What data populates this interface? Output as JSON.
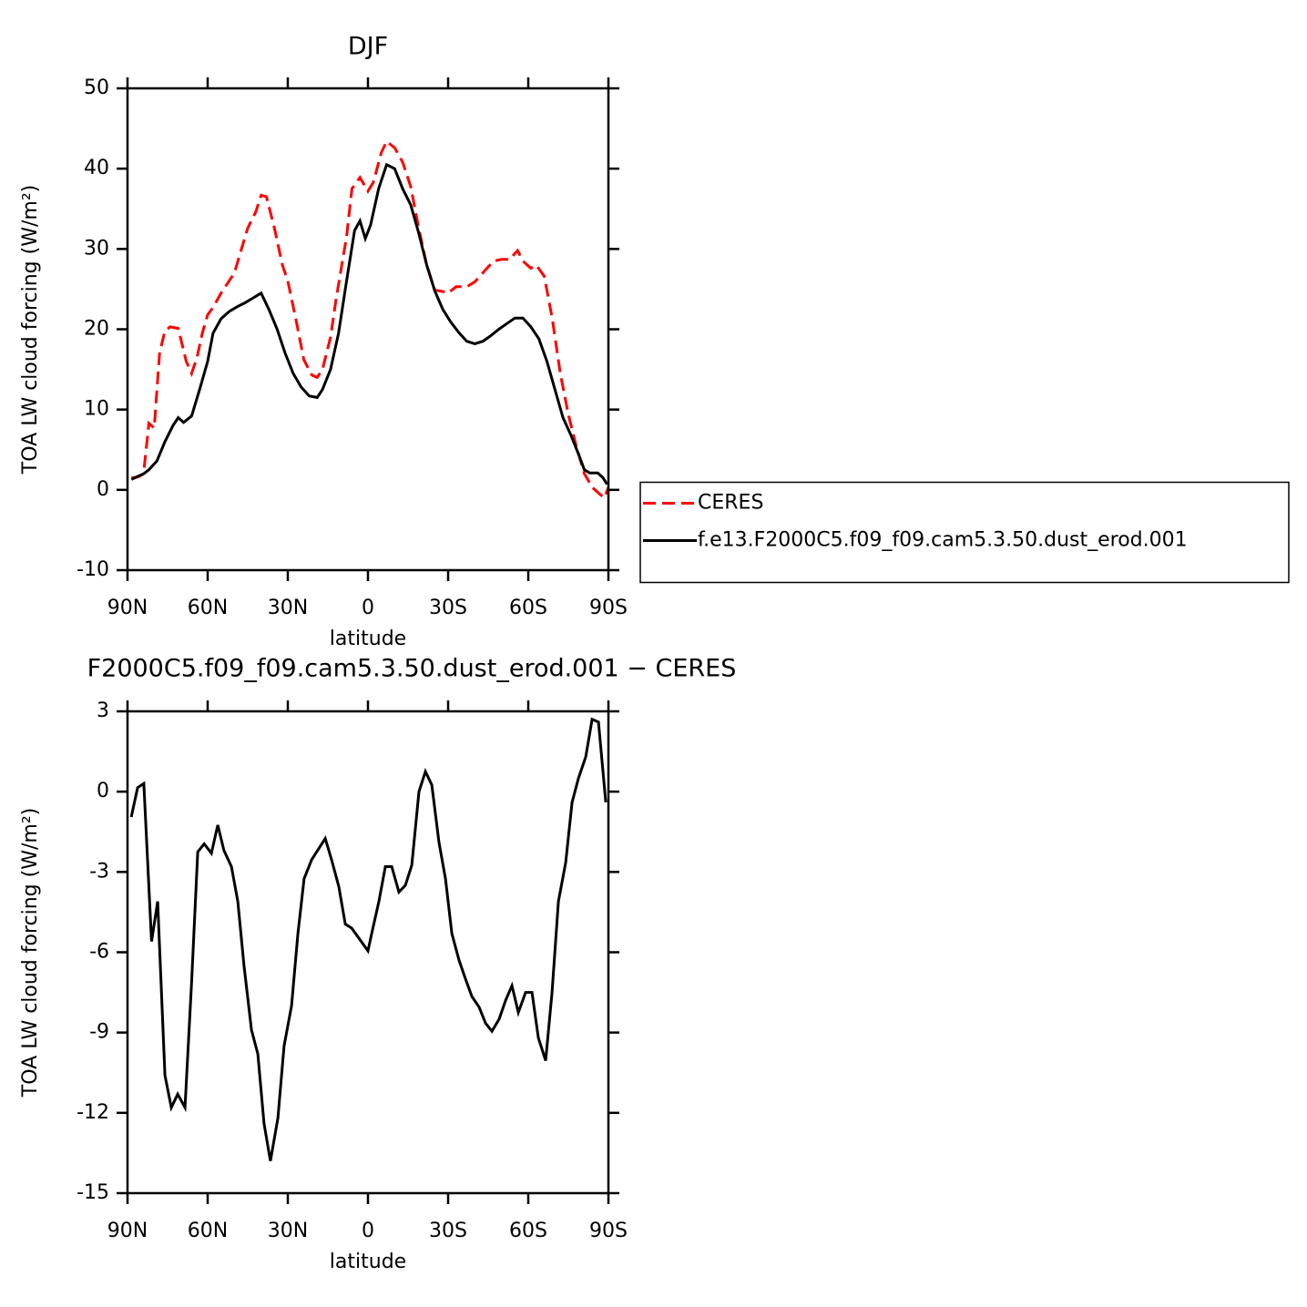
{
  "chart_data": [
    {
      "type": "line",
      "title": "DJF",
      "xlabel": "latitude",
      "ylabel": "TOA LW cloud forcing (W/m²)",
      "xlim": [
        90,
        -90
      ],
      "xticks": [
        {
          "value": 90,
          "label": "90N"
        },
        {
          "value": 60,
          "label": "60N"
        },
        {
          "value": 30,
          "label": "30N"
        },
        0,
        {
          "value": -30,
          "label": "30S"
        },
        {
          "value": -60,
          "label": "60S"
        },
        {
          "value": -90,
          "label": "90S"
        }
      ],
      "ylim": [
        -10,
        50
      ],
      "yticks": [
        -10,
        0,
        10,
        20,
        30,
        40,
        50
      ],
      "legend": "right",
      "series": [
        {
          "name": "CERES",
          "color": "#ff0000",
          "line_style": "dashed",
          "x": [
            88.5,
            86,
            84,
            82,
            80,
            78,
            76,
            74,
            71,
            68,
            66,
            64,
            62,
            60,
            58,
            55,
            52,
            50,
            45,
            42,
            40,
            38,
            35,
            32,
            30,
            27,
            24,
            21,
            19,
            17,
            14,
            12,
            8,
            6,
            3,
            0,
            -2,
            -5,
            -7,
            -10,
            -13,
            -16,
            -19,
            -22,
            -25,
            -28,
            -30,
            -33,
            -37,
            -40,
            -44,
            -47,
            -50,
            -53,
            -56,
            -58,
            -61,
            -63,
            -66,
            -69,
            -72,
            -75,
            -78,
            -81,
            -84,
            -87,
            -88.5,
            -90
          ],
          "values": [
            1.5,
            1.6,
            2,
            8.3,
            7.7,
            17,
            19.8,
            20.3,
            20.1,
            16,
            14.5,
            16.5,
            19.5,
            21.8,
            22.7,
            24.5,
            26,
            27,
            32.6,
            34.6,
            36.7,
            36.5,
            32.6,
            28,
            26,
            21.3,
            16.2,
            14.3,
            14,
            15,
            19,
            23.6,
            31.5,
            37.5,
            38.9,
            37.2,
            38.3,
            42,
            43.4,
            42.6,
            40.8,
            37.8,
            32.6,
            28,
            24.9,
            24.7,
            24.5,
            25.3,
            25.3,
            25.9,
            27.4,
            28.5,
            28.7,
            28.7,
            29.8,
            28.5,
            27.6,
            28,
            26.6,
            21.3,
            14.5,
            9.4,
            5.4,
            2,
            0.3,
            -0.6,
            -1,
            0.3
          ]
        },
        {
          "name": "f.e13.F2000C5.f09_f09.cam5.3.50.dust_erod.001",
          "color": "#000000",
          "line_style": "solid",
          "x": [
            88.5,
            86,
            84,
            82,
            79,
            76,
            73,
            71,
            69,
            66,
            63,
            60,
            58,
            55,
            52,
            49,
            46,
            43,
            40,
            37,
            34,
            31,
            28,
            25,
            22,
            19,
            17,
            14,
            11,
            8,
            5,
            3,
            1,
            -1,
            -4,
            -7,
            -10,
            -13,
            -16,
            -19,
            -22,
            -25,
            -28,
            -31,
            -34,
            -37,
            -40,
            -43,
            -46,
            -49,
            -52,
            -55,
            -58,
            -61,
            -64,
            -67,
            -70,
            -73,
            -76,
            -79,
            -81,
            -83,
            -86,
            -88,
            -89.5
          ],
          "values": [
            1.3,
            1.7,
            2,
            2.5,
            3.6,
            6,
            8,
            9,
            8.4,
            9.2,
            12.5,
            16,
            19.5,
            21.3,
            22.2,
            22.8,
            23.3,
            23.9,
            24.5,
            22.4,
            20,
            17,
            14.5,
            12.8,
            11.7,
            11.5,
            12.5,
            15,
            19.5,
            26,
            32.3,
            33.5,
            31.3,
            33,
            37.5,
            40.5,
            40,
            37.5,
            35.5,
            32,
            28,
            24.8,
            22.5,
            20.9,
            19.6,
            18.5,
            18.2,
            18.5,
            19.2,
            20,
            20.7,
            21.4,
            21.4,
            20.3,
            18.8,
            16,
            12.5,
            9,
            6.8,
            4.3,
            2.5,
            2.1,
            2.1,
            1.5,
            0.7
          ]
        }
      ]
    },
    {
      "type": "line",
      "title": "F2000C5.f09_f09.cam5.3.50.dust_erod.001 − CERES",
      "xlabel": "latitude",
      "ylabel": "TOA LW cloud forcing (W/m²)",
      "xlim": [
        90,
        -90
      ],
      "xticks": [
        {
          "value": 90,
          "label": "90N"
        },
        {
          "value": 60,
          "label": "60N"
        },
        {
          "value": 30,
          "label": "30N"
        },
        0,
        {
          "value": -30,
          "label": "30S"
        },
        {
          "value": -60,
          "label": "60S"
        },
        {
          "value": -90,
          "label": "90S"
        }
      ],
      "ylim": [
        -15,
        3
      ],
      "yticks": [
        -15,
        -12,
        -9,
        -6,
        -3,
        0,
        3
      ],
      "series": [
        {
          "color": "#000000",
          "line_style": "solid",
          "x": [
            88.6,
            86.2,
            83.9,
            81,
            78.7,
            76,
            73.6,
            71.2,
            68.5,
            66,
            63.7,
            61.3,
            58.6,
            56.2,
            53.9,
            51.1,
            48.7,
            46.4,
            43.6,
            41.2,
            38.9,
            36.5,
            33.7,
            31.4,
            28.6,
            26.2,
            23.9,
            21.1,
            16,
            13.6,
            10.9,
            8.5,
            6.1,
            0,
            -1.4,
            -4.1,
            -6.5,
            -8.9,
            -11.6,
            -14,
            -16.4,
            -19.1,
            -21.5,
            -23.9,
            -26.6,
            -29,
            -31.4,
            -34.1,
            -36.5,
            -38.9,
            -41.6,
            -44,
            -46.4,
            -49.1,
            -51.5,
            -53.9,
            -56.3,
            -59,
            -61.4,
            -63.8,
            -66.5,
            -68.9,
            -71.3,
            -74,
            -76.4,
            -78.8,
            -81.5,
            -83.9,
            -86.3,
            -89
          ],
          "values": [
            -0.95,
            0.15,
            0.3,
            -5.6,
            -4.1,
            -10.6,
            -11.8,
            -11.3,
            -11.8,
            -7.1,
            -2.25,
            -1.95,
            -2.3,
            -1.25,
            -2.2,
            -2.8,
            -4.1,
            -6.5,
            -8.9,
            -9.8,
            -12.4,
            -13.8,
            -12.2,
            -9.5,
            -8,
            -5.3,
            -3.25,
            -2.55,
            -1.75,
            -2.55,
            -3.55,
            -4.95,
            -5.1,
            -5.95,
            -5.3,
            -4.1,
            -2.8,
            -2.8,
            -3.75,
            -3.5,
            -2.75,
            0,
            0.75,
            0.25,
            -1.9,
            -3.25,
            -5.3,
            -6.3,
            -7,
            -7.65,
            -8.05,
            -8.65,
            -8.95,
            -8.5,
            -7.8,
            -7.25,
            -8.25,
            -7.5,
            -7.5,
            -9.2,
            -10.05,
            -7.5,
            -4.1,
            -2.65,
            -0.4,
            0.5,
            1.3,
            2.7,
            2.6,
            -0.4
          ]
        }
      ]
    }
  ]
}
